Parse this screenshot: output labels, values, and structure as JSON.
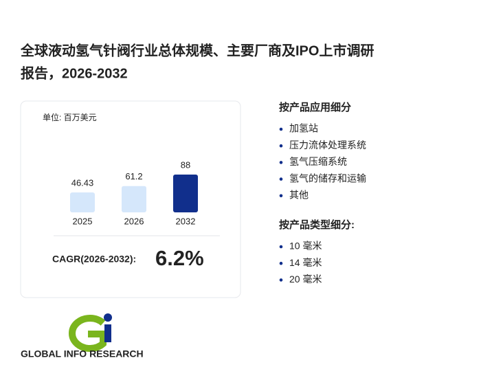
{
  "title": "全球液动氢气针阀行业总体规模、主要厂商及IPO上市调研报告，2026-2032",
  "chart_data": {
    "type": "bar",
    "unit_label": "单位: 百万美元",
    "categories": [
      "2025",
      "2026",
      "2032"
    ],
    "values": [
      46.43,
      61.2,
      88
    ],
    "colors": [
      "#d5e7fb",
      "#d5e7fb",
      "#112f8c"
    ]
  },
  "cagr": {
    "label": "CAGR(2026-2032):",
    "value": "6.2%"
  },
  "segments": [
    {
      "heading": "按产品应用细分",
      "items": [
        "加氢站",
        "压力流体处理系统",
        "氢气压缩系统",
        "氢气的储存和运输",
        "其他"
      ]
    },
    {
      "heading": "按产品类型细分:",
      "items": [
        "10 毫米",
        "14 毫米",
        "20 毫米"
      ]
    }
  ],
  "logo_text": "GLOBAL INFO RESEARCH"
}
